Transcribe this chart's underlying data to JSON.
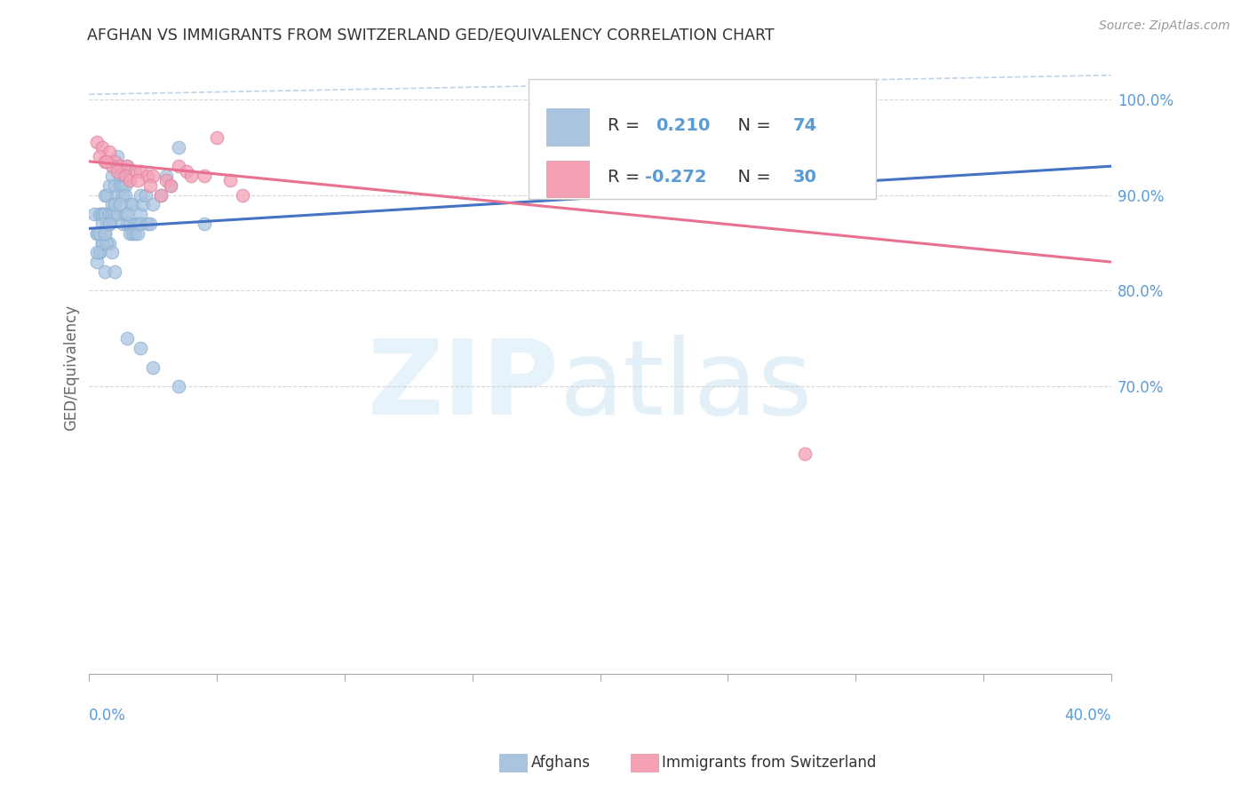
{
  "title": "AFGHAN VS IMMIGRANTS FROM SWITZERLAND GED/EQUIVALENCY CORRELATION CHART",
  "source": "Source: ZipAtlas.com",
  "ylabel": "GED/Equivalency",
  "xlim": [
    0.0,
    40.0
  ],
  "ylim": [
    40.0,
    104.0
  ],
  "blue_color": "#aac4e0",
  "pink_color": "#f4a0b5",
  "blue_line_color": "#4472c4",
  "pink_line_color": "#e87090",
  "dashed_color": "#b0c8e0",
  "grid_color": "#cccccc",
  "right_tick_color": "#5b9bd5",
  "R_blue": 0.21,
  "N_blue": 74,
  "R_pink": -0.272,
  "N_pink": 30,
  "blue_line_x0": 0.0,
  "blue_line_y0": 86.5,
  "blue_line_x1": 40.0,
  "blue_line_y1": 93.0,
  "pink_line_x0": 0.0,
  "pink_line_y0": 93.5,
  "pink_line_x1": 40.0,
  "pink_line_y1": 83.0,
  "dashed_upper_y0": 102.0,
  "dashed_upper_y1": 102.0,
  "dashed_lower_y0": 86.5,
  "dashed_lower_y1": 86.5,
  "afghans_x": [
    0.2,
    0.3,
    0.3,
    0.3,
    0.4,
    0.4,
    0.4,
    0.5,
    0.5,
    0.5,
    0.5,
    0.6,
    0.6,
    0.6,
    0.6,
    0.7,
    0.7,
    0.7,
    0.8,
    0.8,
    0.8,
    0.8,
    0.9,
    0.9,
    0.9,
    1.0,
    1.0,
    1.0,
    1.1,
    1.1,
    1.1,
    1.2,
    1.2,
    1.3,
    1.3,
    1.3,
    1.4,
    1.4,
    1.4,
    1.5,
    1.5,
    1.6,
    1.6,
    1.6,
    1.7,
    1.7,
    1.8,
    1.8,
    1.9,
    1.9,
    2.0,
    2.0,
    2.0,
    2.1,
    2.2,
    2.3,
    2.4,
    2.5,
    2.8,
    3.0,
    3.2,
    3.5,
    1.0,
    1.2,
    0.5,
    0.7,
    0.4,
    0.6,
    0.3,
    0.8,
    1.5,
    0.9,
    0.6,
    4.5
  ],
  "afghans_y": [
    88.0,
    86.0,
    83.0,
    86.0,
    84.0,
    88.0,
    84.0,
    85.0,
    88.0,
    85.0,
    88.0,
    88.0,
    86.0,
    90.0,
    88.0,
    90.0,
    87.0,
    87.0,
    91.0,
    88.0,
    87.0,
    85.0,
    92.0,
    89.0,
    88.0,
    91.0,
    89.0,
    88.0,
    94.0,
    90.0,
    88.0,
    92.0,
    91.0,
    91.0,
    90.0,
    87.0,
    91.0,
    90.0,
    88.0,
    87.0,
    93.0,
    89.0,
    87.0,
    86.0,
    89.0,
    86.0,
    87.0,
    86.0,
    87.0,
    86.0,
    88.0,
    87.0,
    90.0,
    89.0,
    90.0,
    87.0,
    87.0,
    89.0,
    90.0,
    92.0,
    91.0,
    95.0,
    89.0,
    89.0,
    87.0,
    85.0,
    86.0,
    86.0,
    84.0,
    87.0,
    88.0,
    84.0,
    82.0,
    87.0
  ],
  "afghans_y_low": [
    82.0,
    75.0,
    74.0,
    72.0,
    70.0
  ],
  "afghans_x_low": [
    1.0,
    1.5,
    2.0,
    2.5,
    3.5
  ],
  "swiss_x": [
    0.3,
    0.5,
    0.8,
    1.0,
    1.2,
    1.5,
    1.8,
    2.0,
    2.3,
    2.5,
    3.0,
    3.5,
    3.8,
    4.0,
    4.5,
    5.0,
    5.5,
    6.0,
    0.4,
    0.6,
    0.9,
    1.1,
    1.4,
    1.6,
    1.9,
    2.4,
    2.8,
    3.2,
    28.0,
    0.7
  ],
  "swiss_y": [
    95.5,
    95.0,
    94.5,
    93.5,
    93.0,
    93.0,
    92.5,
    92.5,
    92.0,
    92.0,
    91.5,
    93.0,
    92.5,
    92.0,
    92.0,
    96.0,
    91.5,
    90.0,
    94.0,
    93.5,
    93.0,
    92.5,
    92.0,
    91.5,
    91.5,
    91.0,
    90.0,
    91.0,
    63.0,
    93.5
  ]
}
